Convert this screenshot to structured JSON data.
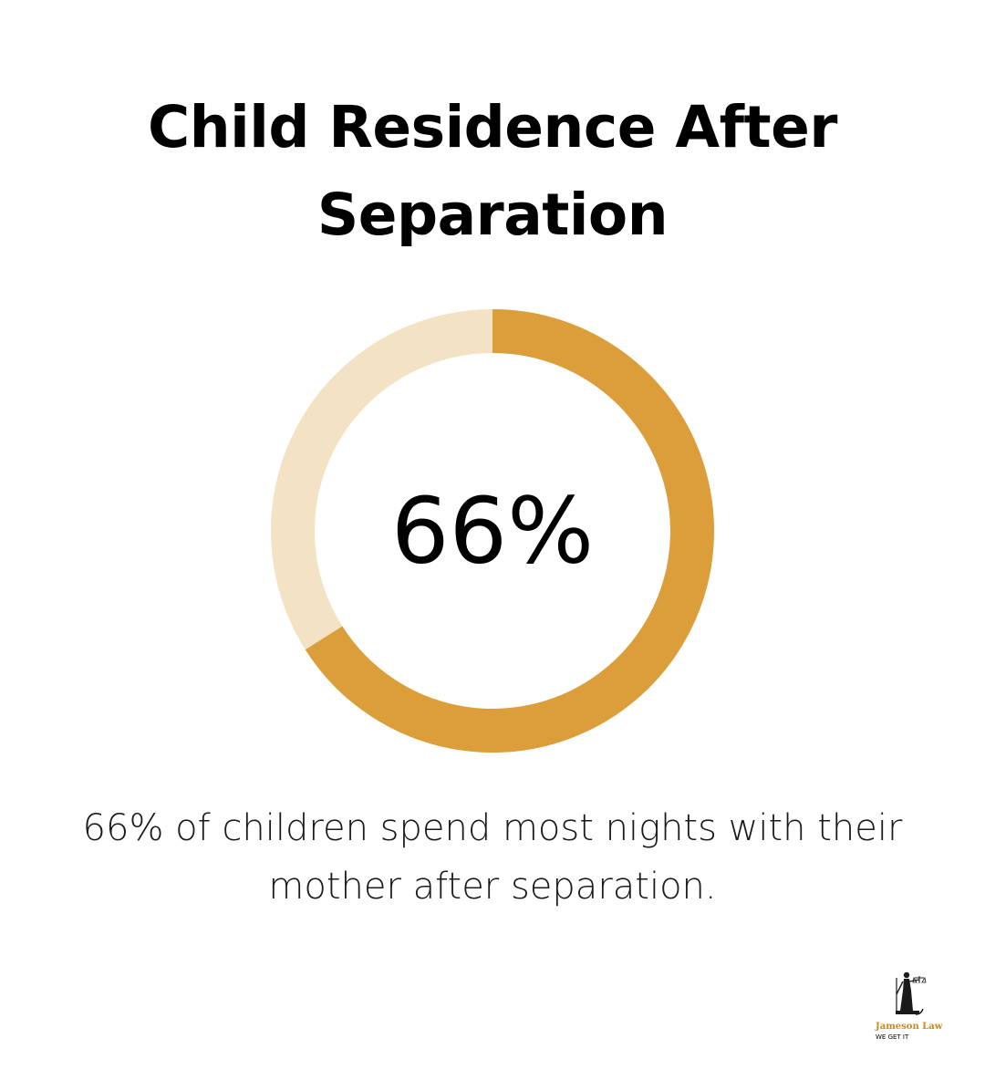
{
  "title": {
    "line1": "Child Residence After",
    "line2": "Separation"
  },
  "chart_data": {
    "type": "pie",
    "style": "donut",
    "title": "Child Residence After Separation",
    "value": 66,
    "remainder": 34,
    "unit": "%",
    "center_label": "66%",
    "colors": {
      "filled": "#DC9E3A",
      "remaining": "#F3E2C4"
    }
  },
  "caption": {
    "line1": "66% of children spend most nights with their",
    "line2": "mother after separation."
  },
  "logo": {
    "name": "Jameson Law",
    "tagline": "WE GET IT"
  }
}
